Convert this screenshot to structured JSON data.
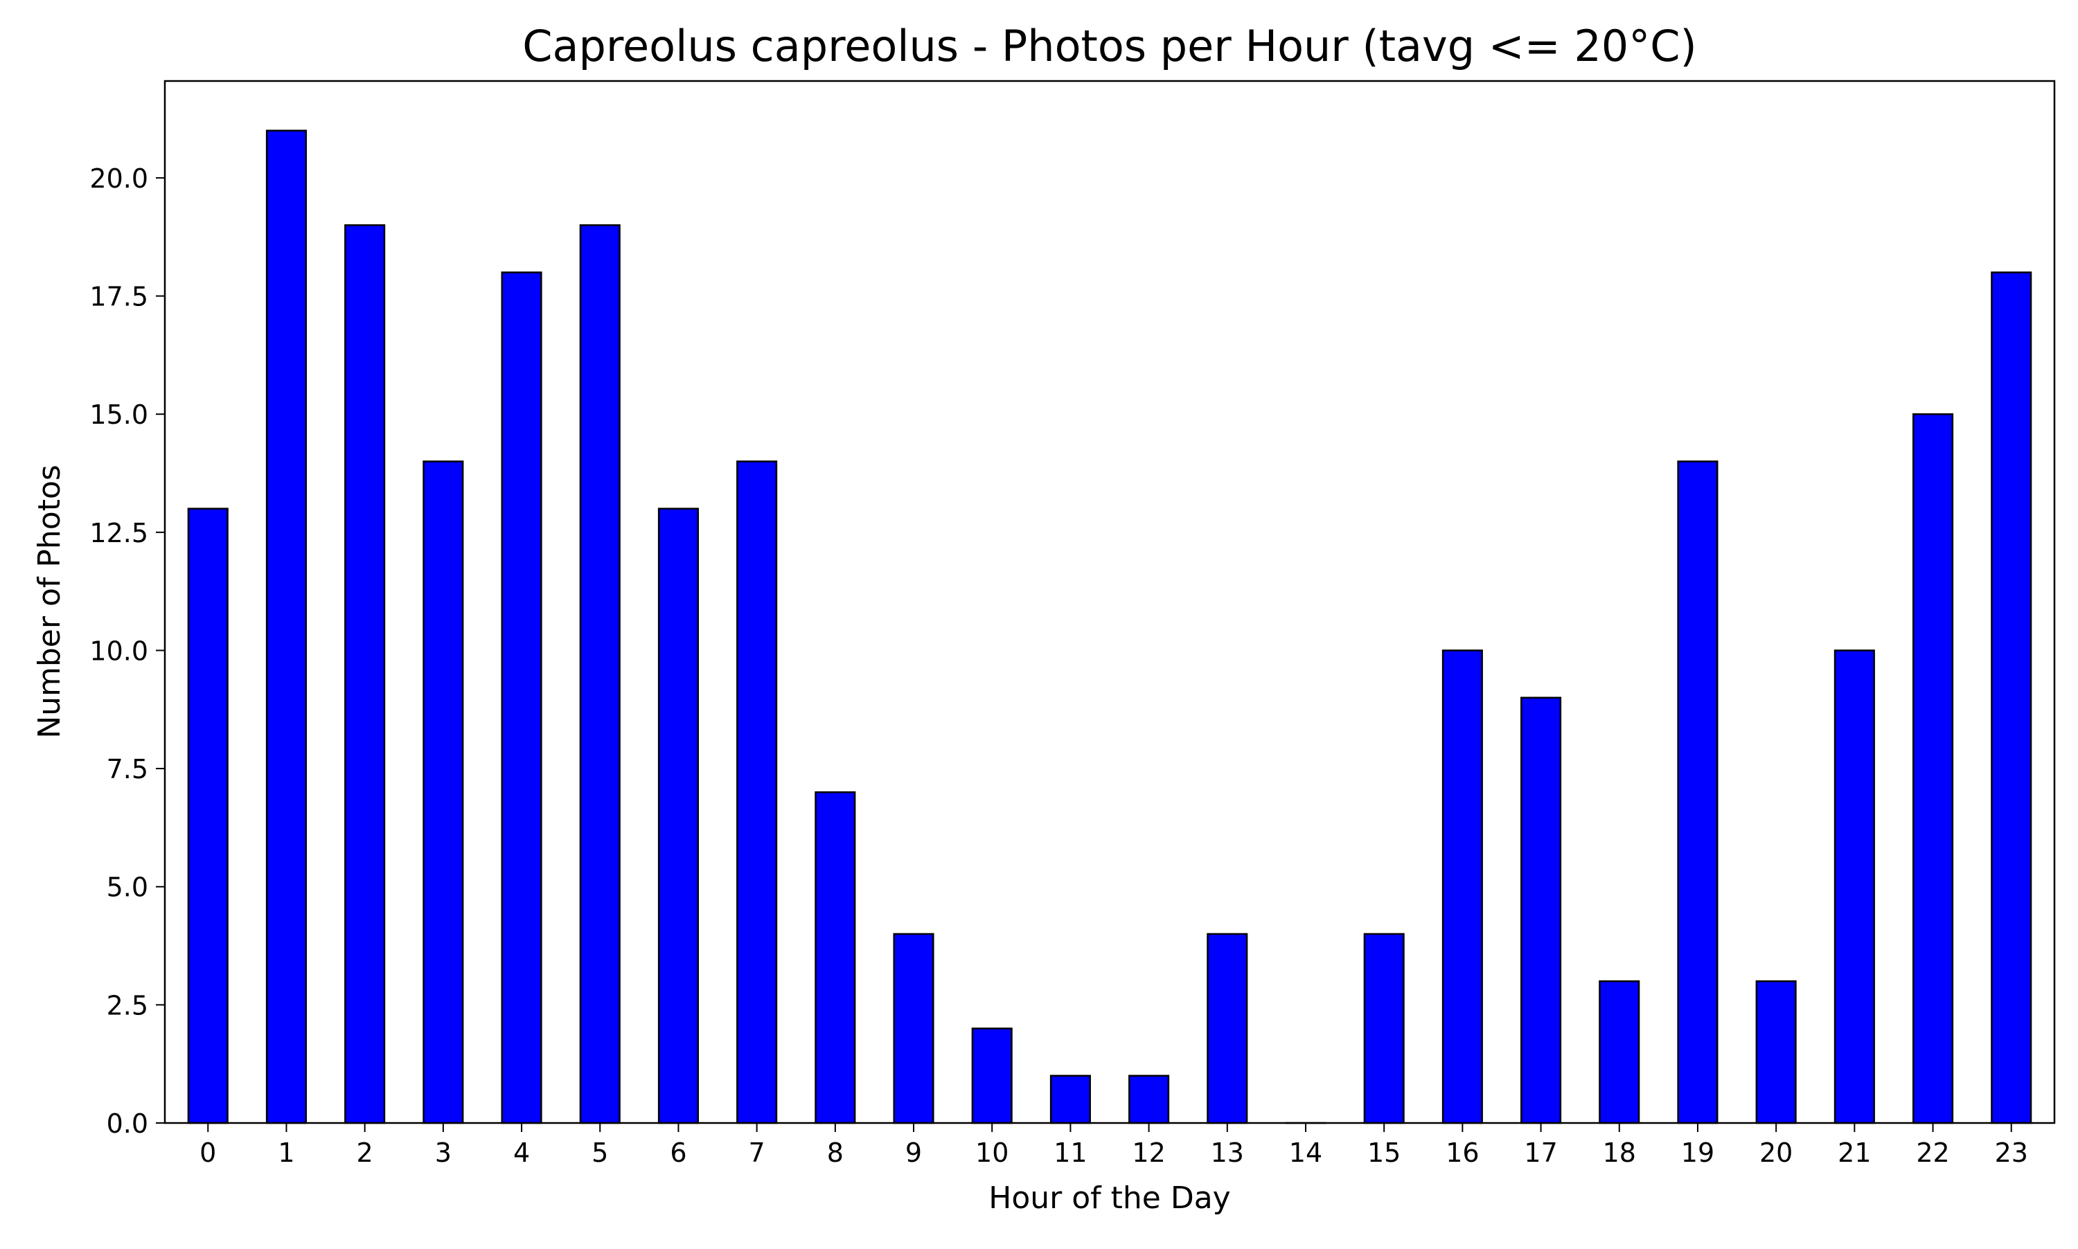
{
  "chart_data": {
    "type": "bar",
    "title": "Capreolus capreolus - Photos per Hour (tavg <= 20°C)",
    "xlabel": "Hour of the Day",
    "ylabel": "Number of Photos",
    "categories": [
      "0",
      "1",
      "2",
      "3",
      "4",
      "5",
      "6",
      "7",
      "8",
      "9",
      "10",
      "11",
      "12",
      "13",
      "14",
      "15",
      "16",
      "17",
      "18",
      "19",
      "20",
      "21",
      "22",
      "23"
    ],
    "values": [
      13,
      21,
      19,
      14,
      18,
      19,
      13,
      14,
      7,
      4,
      2,
      1,
      1,
      4,
      0,
      4,
      10,
      9,
      3,
      14,
      3,
      10,
      15,
      18
    ],
    "ylim": [
      0,
      22.05
    ],
    "yticks": [
      "0.0",
      "2.5",
      "5.0",
      "7.5",
      "10.0",
      "12.5",
      "15.0",
      "17.5",
      "20.0"
    ],
    "grid": false,
    "legend": "none",
    "bar_color": "#0000ff",
    "edge_color": "#000000"
  }
}
